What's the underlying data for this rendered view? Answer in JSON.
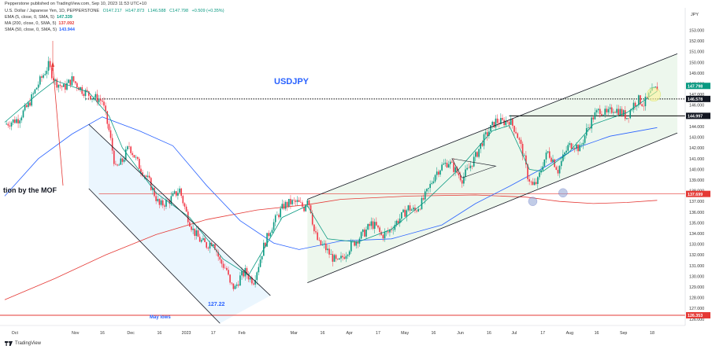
{
  "header": {
    "published_by": "Pepperstone published on TradingView.com, Sep 10, 2023 11:53 UTC+10",
    "symbol": "U.S. Dollar / Japanese Yen, 1D, PEPPERSTONE",
    "ohlc": [
      "O147.217",
      "H147.873",
      "L146.588",
      "C147.798",
      "+0.509 (+0.35%)"
    ],
    "indicators": [
      {
        "name": "EMA (5, close, 0, SMA, 5)",
        "value": "147.339",
        "color": "#089981"
      },
      {
        "name": "MA (200, close, 0, SMA, 5)",
        "value": "137.092",
        "color": "#e53935"
      },
      {
        "name": "SMA (50, close, 0, SMA, 5)",
        "value": "143.944",
        "color": "#2962ff"
      }
    ]
  },
  "y_unit": "JPY",
  "branding": "TradingView",
  "colors": {
    "up": "#089981",
    "down": "#f23645",
    "ema5": "#089981",
    "ma200": "#e53935",
    "sma50": "#2962ff",
    "channel_fill": "#e8f5e9",
    "down_channel_fill": "#e3f2fd",
    "highlight": "#fff59d"
  },
  "chart_data": {
    "type": "candlestick",
    "title": "USDJPY",
    "annotations": {
      "mof": "tion by the MOF",
      "low_label": "127.22",
      "may_lows": "May lows"
    },
    "ylim": [
      125.4,
      154.8
    ],
    "y_ticks": [
      126,
      127,
      128,
      129,
      130,
      131,
      132,
      133,
      134,
      135,
      136,
      137,
      138,
      139,
      140,
      141,
      142,
      143,
      144,
      145,
      146,
      147,
      148,
      149,
      150,
      151,
      152,
      153
    ],
    "x_ticks": [
      "Oct",
      "Nov",
      "16",
      "Dec",
      "16",
      "2023",
      "17",
      "Feb",
      "Mar",
      "16",
      "Apr",
      "17",
      "May",
      "16",
      "Jun",
      "16",
      "Jul",
      "17",
      "Aug",
      "16",
      "Sep",
      "18"
    ],
    "price_labels": [
      {
        "value": "147.798",
        "price": 147.798,
        "color": "#089981"
      },
      {
        "value": "146.578",
        "price": 146.578,
        "color": "#000000"
      },
      {
        "value": "144.997",
        "price": 144.997,
        "color": "#000000"
      },
      {
        "value": "137.699",
        "price": 137.699,
        "color": "#e53935"
      },
      {
        "value": "126.353",
        "price": 126.353,
        "color": "#e53935"
      }
    ],
    "horizontal_levels": {
      "dotted_resistance": 146.578,
      "solid_resistance": 144.997,
      "ma_level": 137.699,
      "may_lows": 126.353
    },
    "price_path": [
      [
        0,
        144.2
      ],
      [
        8,
        144.7
      ],
      [
        14,
        146.0
      ],
      [
        20,
        148.0
      ],
      [
        26,
        149.7
      ],
      [
        30,
        148.2
      ],
      [
        35,
        147.6
      ],
      [
        40,
        148.4
      ],
      [
        46,
        147.4
      ],
      [
        52,
        146.8
      ],
      [
        58,
        146.4
      ],
      [
        62,
        143.6
      ],
      [
        66,
        140.0
      ],
      [
        70,
        140.8
      ],
      [
        74,
        142.2
      ],
      [
        80,
        140.3
      ],
      [
        86,
        138.8
      ],
      [
        92,
        136.6
      ],
      [
        98,
        137.1
      ],
      [
        104,
        138.1
      ],
      [
        108,
        135.9
      ],
      [
        112,
        134.3
      ],
      [
        116,
        133.4
      ],
      [
        120,
        132.9
      ],
      [
        124,
        133.3
      ],
      [
        128,
        131.4
      ],
      [
        132,
        130.6
      ],
      [
        134,
        129.2
      ],
      [
        137,
        128.9
      ],
      [
        140,
        129.9
      ],
      [
        143,
        130.4
      ],
      [
        146,
        129.8
      ],
      [
        148,
        129.6
      ],
      [
        151,
        131.1
      ],
      [
        154,
        132.8
      ],
      [
        158,
        134.4
      ],
      [
        162,
        135.6
      ],
      [
        166,
        136.6
      ],
      [
        170,
        136.9
      ],
      [
        174,
        136.9
      ],
      [
        178,
        136.4
      ],
      [
        180,
        137.4
      ],
      [
        182,
        136.2
      ],
      [
        184,
        134.2
      ],
      [
        187,
        133.0
      ],
      [
        190,
        132.8
      ],
      [
        194,
        131.9
      ],
      [
        198,
        131.2
      ],
      [
        202,
        132.0
      ],
      [
        206,
        132.9
      ],
      [
        210,
        133.5
      ],
      [
        214,
        134.1
      ],
      [
        218,
        134.9
      ],
      [
        221,
        134.6
      ],
      [
        224,
        133.8
      ],
      [
        228,
        134.1
      ],
      [
        232,
        134.9
      ],
      [
        236,
        135.6
      ],
      [
        240,
        136.4
      ],
      [
        244,
        136.1
      ],
      [
        248,
        136.9
      ],
      [
        252,
        138.1
      ],
      [
        256,
        139.6
      ],
      [
        260,
        140.3
      ],
      [
        264,
        140.7
      ],
      [
        268,
        139.9
      ],
      [
        272,
        139.1
      ],
      [
        276,
        140.1
      ],
      [
        280,
        141.2
      ],
      [
        284,
        142.6
      ],
      [
        288,
        143.6
      ],
      [
        292,
        144.5
      ],
      [
        296,
        144.4
      ],
      [
        300,
        144.6
      ],
      [
        304,
        143.6
      ],
      [
        308,
        141.6
      ],
      [
        311,
        139.4
      ],
      [
        314,
        138.4
      ],
      [
        317,
        138.9
      ],
      [
        320,
        140.6
      ],
      [
        323,
        141.6
      ],
      [
        326,
        140.9
      ],
      [
        329,
        139.9
      ],
      [
        332,
        141.1
      ],
      [
        335,
        142.1
      ],
      [
        338,
        142.4
      ],
      [
        342,
        141.9
      ],
      [
        346,
        143.6
      ],
      [
        350,
        144.9
      ],
      [
        354,
        145.6
      ],
      [
        358,
        145.1
      ],
      [
        362,
        145.7
      ],
      [
        366,
        145.4
      ],
      [
        370,
        144.9
      ],
      [
        374,
        146.1
      ],
      [
        377,
        146.5
      ],
      [
        380,
        146.1
      ],
      [
        384,
        147.1
      ],
      [
        388,
        147.6
      ]
    ],
    "ema5_path": [
      [
        0,
        144.4
      ],
      [
        20,
        147.1
      ],
      [
        30,
        148.3
      ],
      [
        50,
        147.2
      ],
      [
        62,
        145.0
      ],
      [
        70,
        142.0
      ],
      [
        90,
        137.8
      ],
      [
        110,
        135.5
      ],
      [
        130,
        131.6
      ],
      [
        145,
        130.1
      ],
      [
        165,
        135.5
      ],
      [
        180,
        136.6
      ],
      [
        192,
        133.5
      ],
      [
        210,
        133.2
      ],
      [
        230,
        134.4
      ],
      [
        250,
        137.0
      ],
      [
        270,
        140.0
      ],
      [
        290,
        143.6
      ],
      [
        300,
        144.1
      ],
      [
        312,
        140.0
      ],
      [
        320,
        139.8
      ],
      [
        335,
        141.5
      ],
      [
        350,
        144.2
      ],
      [
        370,
        145.3
      ],
      [
        388,
        147.3
      ]
    ],
    "sma50_path": [
      [
        0,
        137.5
      ],
      [
        20,
        141.0
      ],
      [
        40,
        143.3
      ],
      [
        58,
        144.9
      ],
      [
        80,
        143.6
      ],
      [
        100,
        142.2
      ],
      [
        120,
        138.5
      ],
      [
        140,
        135.2
      ],
      [
        160,
        133.1
      ],
      [
        175,
        132.5
      ],
      [
        200,
        133.3
      ],
      [
        230,
        133.5
      ],
      [
        260,
        134.8
      ],
      [
        280,
        136.8
      ],
      [
        300,
        138.4
      ],
      [
        320,
        140.1
      ],
      [
        340,
        142.0
      ],
      [
        360,
        143.1
      ],
      [
        388,
        143.9
      ]
    ],
    "ma200_path": [
      [
        0,
        127.8
      ],
      [
        30,
        129.8
      ],
      [
        60,
        132.0
      ],
      [
        90,
        133.9
      ],
      [
        120,
        135.3
      ],
      [
        150,
        136.2
      ],
      [
        180,
        136.7
      ],
      [
        200,
        137.2
      ],
      [
        240,
        137.5
      ],
      [
        280,
        137.6
      ],
      [
        310,
        137.4
      ],
      [
        330,
        137.0
      ],
      [
        350,
        136.8
      ],
      [
        370,
        136.9
      ],
      [
        388,
        137.1
      ]
    ],
    "down_channel": {
      "upper": [
        [
          50,
          144.2
        ],
        [
          158,
          128.2
        ]
      ],
      "lower": [
        [
          50,
          138.2
        ],
        [
          128,
          125.6
        ]
      ]
    },
    "up_channel": {
      "upper": [
        [
          180,
          137.2
        ],
        [
          400,
          150.8
        ]
      ],
      "lower": [
        [
          180,
          129.4
        ],
        [
          400,
          143.4
        ]
      ]
    },
    "triangle": {
      "points": [
        [
          266,
          141.0
        ],
        [
          292,
          140.3
        ],
        [
          272,
          139.2
        ]
      ]
    }
  }
}
